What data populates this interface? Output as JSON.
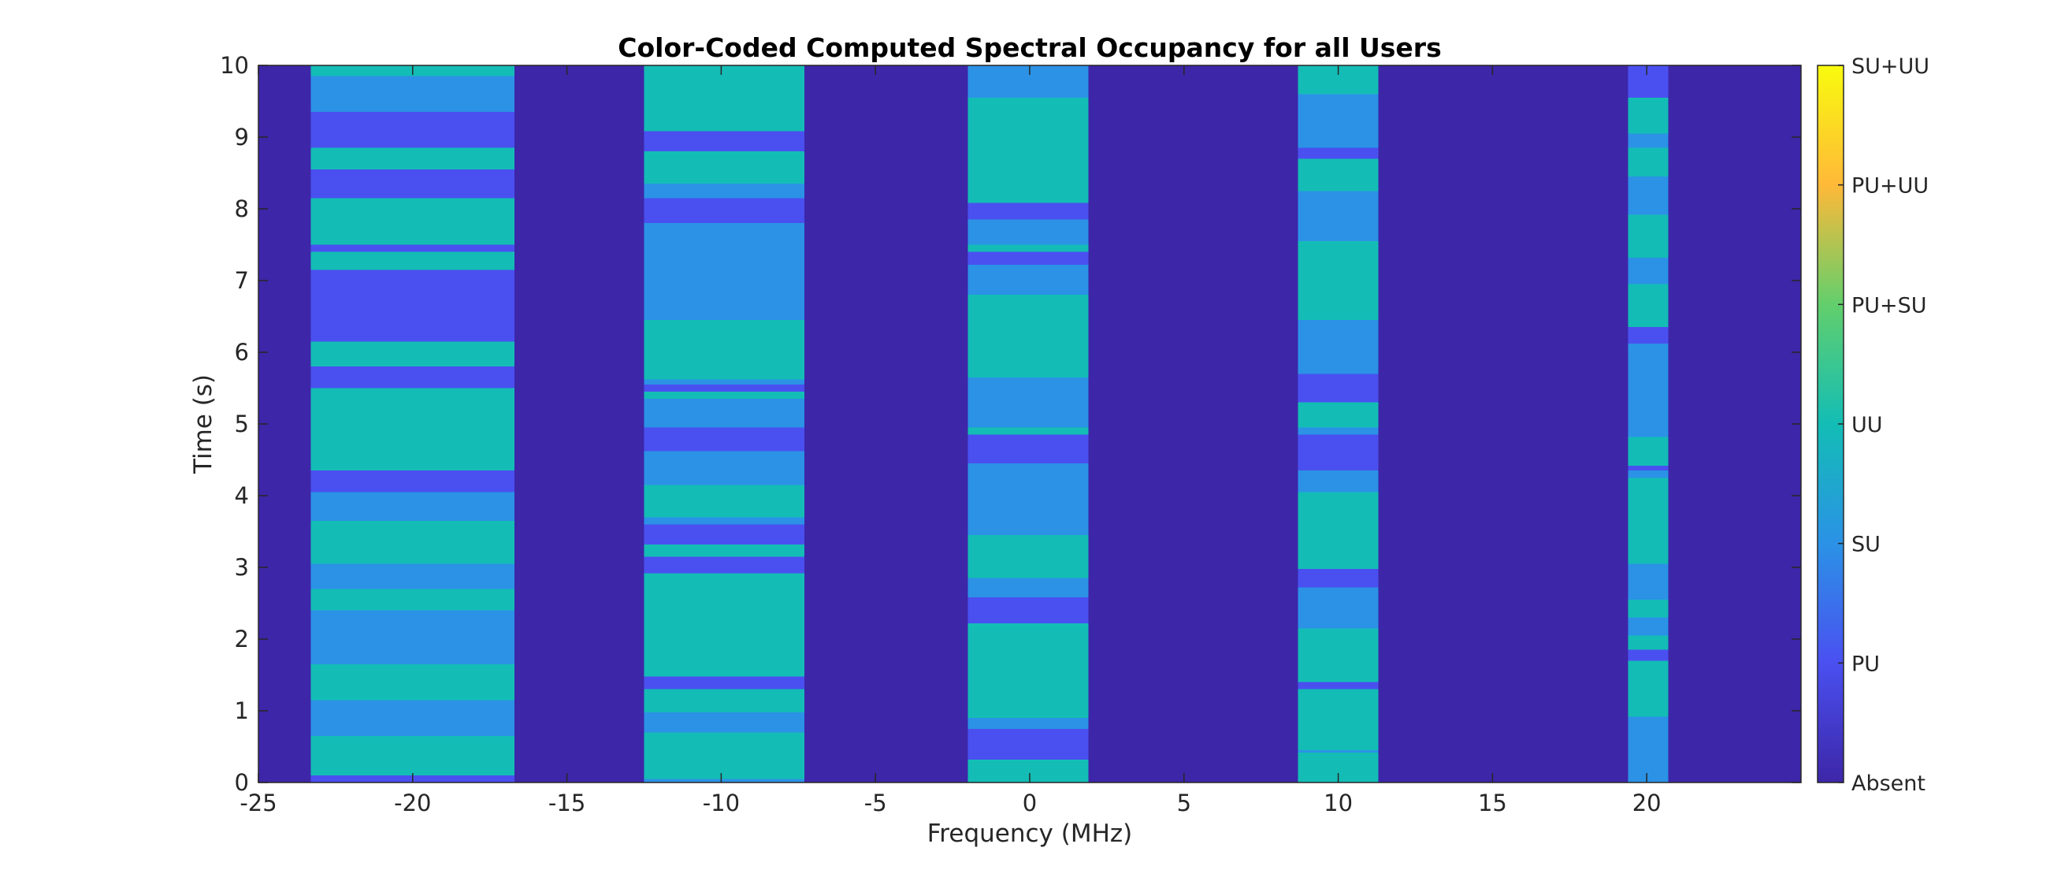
{
  "chart_data": {
    "type": "heatmap",
    "title": "Color-Coded Computed Spectral Occupancy for all Users",
    "xlabel": "Frequency (MHz)",
    "ylabel": "Time (s)",
    "xlim": [
      -25,
      25
    ],
    "ylim": [
      0,
      10
    ],
    "xticks": [
      -25,
      -20,
      -15,
      -10,
      -5,
      0,
      5,
      10,
      15,
      20
    ],
    "xtick_labels": [
      "-25",
      "-20",
      "-15",
      "-10",
      "-5",
      "0",
      "5",
      "10",
      "15",
      "20"
    ],
    "yticks": [
      0,
      1,
      2,
      3,
      4,
      5,
      6,
      7,
      8,
      9,
      10
    ],
    "ytick_labels": [
      "0",
      "1",
      "2",
      "3",
      "4",
      "5",
      "6",
      "7",
      "8",
      "9",
      "10"
    ],
    "colorbar": {
      "levels": [
        "Absent",
        "PU",
        "SU",
        "UU",
        "PU+SU",
        "PU+UU",
        "SU+UU"
      ],
      "colors": [
        "#3d26a8",
        "#4a50f0",
        "#2b92e6",
        "#13bdb5",
        "#62cf6c",
        "#ffb938",
        "#f9fb0e"
      ]
    },
    "background_state": "Absent",
    "bands": [
      {
        "name": "band-1",
        "f_min": -23.3,
        "f_max": -16.7,
        "segments": [
          {
            "t0": 0.0,
            "t1": 0.1,
            "state": "PU"
          },
          {
            "t0": 0.1,
            "t1": 0.65,
            "state": "UU"
          },
          {
            "t0": 0.65,
            "t1": 1.15,
            "state": "SU"
          },
          {
            "t0": 1.15,
            "t1": 1.65,
            "state": "UU"
          },
          {
            "t0": 1.65,
            "t1": 2.4,
            "state": "SU"
          },
          {
            "t0": 2.4,
            "t1": 2.7,
            "state": "UU"
          },
          {
            "t0": 2.7,
            "t1": 3.05,
            "state": "SU"
          },
          {
            "t0": 3.05,
            "t1": 3.2,
            "state": "UU"
          },
          {
            "t0": 3.2,
            "t1": 3.65,
            "state": "UU"
          },
          {
            "t0": 3.65,
            "t1": 4.05,
            "state": "SU"
          },
          {
            "t0": 4.05,
            "t1": 4.35,
            "state": "PU"
          },
          {
            "t0": 4.35,
            "t1": 5.5,
            "state": "UU"
          },
          {
            "t0": 5.5,
            "t1": 5.8,
            "state": "PU"
          },
          {
            "t0": 5.8,
            "t1": 6.15,
            "state": "UU"
          },
          {
            "t0": 6.15,
            "t1": 7.15,
            "state": "PU"
          },
          {
            "t0": 7.15,
            "t1": 7.4,
            "state": "UU"
          },
          {
            "t0": 7.4,
            "t1": 7.5,
            "state": "PU"
          },
          {
            "t0": 7.5,
            "t1": 8.15,
            "state": "UU"
          },
          {
            "t0": 8.15,
            "t1": 8.55,
            "state": "PU"
          },
          {
            "t0": 8.55,
            "t1": 8.85,
            "state": "UU"
          },
          {
            "t0": 8.85,
            "t1": 9.35,
            "state": "PU"
          },
          {
            "t0": 9.35,
            "t1": 9.85,
            "state": "SU"
          },
          {
            "t0": 9.85,
            "t1": 10.0,
            "state": "UU"
          }
        ]
      },
      {
        "name": "band-2",
        "f_min": -12.5,
        "f_max": -7.3,
        "segments": [
          {
            "t0": 0.0,
            "t1": 0.05,
            "state": "SU"
          },
          {
            "t0": 0.05,
            "t1": 0.7,
            "state": "UU"
          },
          {
            "t0": 0.7,
            "t1": 0.98,
            "state": "SU"
          },
          {
            "t0": 0.98,
            "t1": 1.3,
            "state": "UU"
          },
          {
            "t0": 1.3,
            "t1": 1.48,
            "state": "PU"
          },
          {
            "t0": 1.48,
            "t1": 2.92,
            "state": "UU"
          },
          {
            "t0": 2.92,
            "t1": 3.15,
            "state": "PU"
          },
          {
            "t0": 3.15,
            "t1": 3.32,
            "state": "UU"
          },
          {
            "t0": 3.32,
            "t1": 3.6,
            "state": "PU"
          },
          {
            "t0": 3.6,
            "t1": 3.7,
            "state": "SU"
          },
          {
            "t0": 3.7,
            "t1": 4.15,
            "state": "UU"
          },
          {
            "t0": 4.15,
            "t1": 4.62,
            "state": "SU"
          },
          {
            "t0": 4.62,
            "t1": 4.95,
            "state": "PU"
          },
          {
            "t0": 4.95,
            "t1": 5.35,
            "state": "SU"
          },
          {
            "t0": 5.35,
            "t1": 5.45,
            "state": "UU"
          },
          {
            "t0": 5.45,
            "t1": 5.55,
            "state": "PU"
          },
          {
            "t0": 5.55,
            "t1": 5.62,
            "state": "SU"
          },
          {
            "t0": 5.62,
            "t1": 6.45,
            "state": "UU"
          },
          {
            "t0": 6.45,
            "t1": 7.8,
            "state": "SU"
          },
          {
            "t0": 7.8,
            "t1": 8.15,
            "state": "PU"
          },
          {
            "t0": 8.15,
            "t1": 8.35,
            "state": "SU"
          },
          {
            "t0": 8.35,
            "t1": 8.8,
            "state": "UU"
          },
          {
            "t0": 8.8,
            "t1": 9.08,
            "state": "PU"
          },
          {
            "t0": 9.08,
            "t1": 10.0,
            "state": "UU"
          }
        ]
      },
      {
        "name": "band-3",
        "f_min": -2.0,
        "f_max": 1.9,
        "segments": [
          {
            "t0": 0.0,
            "t1": 0.32,
            "state": "UU"
          },
          {
            "t0": 0.32,
            "t1": 0.75,
            "state": "PU"
          },
          {
            "t0": 0.75,
            "t1": 0.9,
            "state": "SU"
          },
          {
            "t0": 0.9,
            "t1": 2.22,
            "state": "UU"
          },
          {
            "t0": 2.22,
            "t1": 2.58,
            "state": "PU"
          },
          {
            "t0": 2.58,
            "t1": 2.85,
            "state": "SU"
          },
          {
            "t0": 2.85,
            "t1": 3.45,
            "state": "UU"
          },
          {
            "t0": 3.45,
            "t1": 4.45,
            "state": "SU"
          },
          {
            "t0": 4.45,
            "t1": 4.85,
            "state": "PU"
          },
          {
            "t0": 4.85,
            "t1": 4.95,
            "state": "UU"
          },
          {
            "t0": 4.95,
            "t1": 5.65,
            "state": "SU"
          },
          {
            "t0": 5.65,
            "t1": 6.8,
            "state": "UU"
          },
          {
            "t0": 6.8,
            "t1": 7.22,
            "state": "SU"
          },
          {
            "t0": 7.22,
            "t1": 7.4,
            "state": "PU"
          },
          {
            "t0": 7.4,
            "t1": 7.5,
            "state": "UU"
          },
          {
            "t0": 7.5,
            "t1": 7.85,
            "state": "SU"
          },
          {
            "t0": 7.85,
            "t1": 8.08,
            "state": "PU"
          },
          {
            "t0": 8.08,
            "t1": 9.55,
            "state": "UU"
          },
          {
            "t0": 9.55,
            "t1": 10.0,
            "state": "SU"
          }
        ]
      },
      {
        "name": "band-4",
        "f_min": 8.7,
        "f_max": 11.3,
        "segments": [
          {
            "t0": 0.0,
            "t1": 0.42,
            "state": "UU"
          },
          {
            "t0": 0.42,
            "t1": 0.45,
            "state": "SU"
          },
          {
            "t0": 0.45,
            "t1": 1.3,
            "state": "UU"
          },
          {
            "t0": 1.3,
            "t1": 1.4,
            "state": "PU"
          },
          {
            "t0": 1.4,
            "t1": 2.15,
            "state": "UU"
          },
          {
            "t0": 2.15,
            "t1": 2.72,
            "state": "SU"
          },
          {
            "t0": 2.72,
            "t1": 2.98,
            "state": "PU"
          },
          {
            "t0": 2.98,
            "t1": 4.05,
            "state": "UU"
          },
          {
            "t0": 4.05,
            "t1": 4.35,
            "state": "SU"
          },
          {
            "t0": 4.35,
            "t1": 4.85,
            "state": "PU"
          },
          {
            "t0": 4.85,
            "t1": 4.95,
            "state": "SU"
          },
          {
            "t0": 4.95,
            "t1": 5.3,
            "state": "UU"
          },
          {
            "t0": 5.3,
            "t1": 5.7,
            "state": "PU"
          },
          {
            "t0": 5.7,
            "t1": 6.45,
            "state": "SU"
          },
          {
            "t0": 6.45,
            "t1": 7.55,
            "state": "UU"
          },
          {
            "t0": 7.55,
            "t1": 8.25,
            "state": "SU"
          },
          {
            "t0": 8.25,
            "t1": 8.7,
            "state": "UU"
          },
          {
            "t0": 8.7,
            "t1": 8.85,
            "state": "PU"
          },
          {
            "t0": 8.85,
            "t1": 9.6,
            "state": "SU"
          },
          {
            "t0": 9.6,
            "t1": 10.0,
            "state": "UU"
          }
        ]
      },
      {
        "name": "band-5",
        "f_min": 19.4,
        "f_max": 20.7,
        "segments": [
          {
            "t0": 0.0,
            "t1": 0.92,
            "state": "SU"
          },
          {
            "t0": 0.92,
            "t1": 1.7,
            "state": "UU"
          },
          {
            "t0": 1.7,
            "t1": 1.85,
            "state": "PU"
          },
          {
            "t0": 1.85,
            "t1": 2.05,
            "state": "UU"
          },
          {
            "t0": 2.05,
            "t1": 2.3,
            "state": "SU"
          },
          {
            "t0": 2.3,
            "t1": 2.55,
            "state": "UU"
          },
          {
            "t0": 2.55,
            "t1": 3.05,
            "state": "SU"
          },
          {
            "t0": 3.05,
            "t1": 4.25,
            "state": "UU"
          },
          {
            "t0": 4.25,
            "t1": 4.35,
            "state": "SU"
          },
          {
            "t0": 4.35,
            "t1": 4.42,
            "state": "PU"
          },
          {
            "t0": 4.42,
            "t1": 4.82,
            "state": "UU"
          },
          {
            "t0": 4.82,
            "t1": 6.12,
            "state": "SU"
          },
          {
            "t0": 6.12,
            "t1": 6.35,
            "state": "PU"
          },
          {
            "t0": 6.35,
            "t1": 6.95,
            "state": "UU"
          },
          {
            "t0": 6.95,
            "t1": 7.32,
            "state": "SU"
          },
          {
            "t0": 7.32,
            "t1": 7.92,
            "state": "UU"
          },
          {
            "t0": 7.92,
            "t1": 8.45,
            "state": "SU"
          },
          {
            "t0": 8.45,
            "t1": 8.85,
            "state": "UU"
          },
          {
            "t0": 8.85,
            "t1": 9.05,
            "state": "SU"
          },
          {
            "t0": 9.05,
            "t1": 9.55,
            "state": "UU"
          },
          {
            "t0": 9.55,
            "t1": 10.0,
            "state": "PU"
          }
        ]
      }
    ]
  }
}
